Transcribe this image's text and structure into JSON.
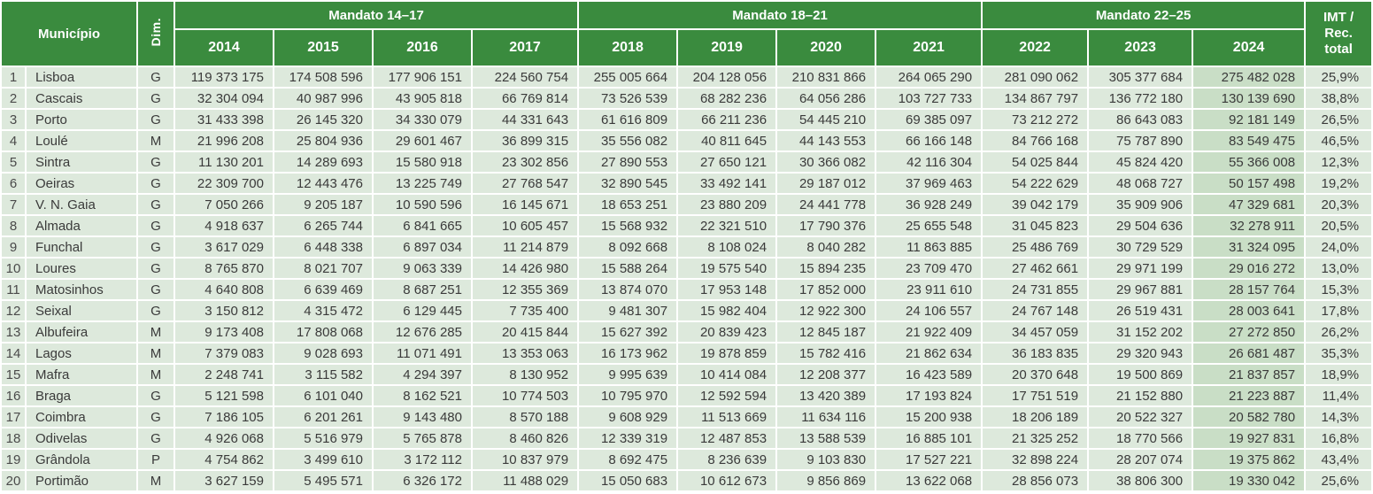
{
  "colors": {
    "header_green": "#3a8b3e",
    "row_background": "#dde9dc",
    "column_2024_highlight": "#c9dec6",
    "header_text": "#ffffff",
    "body_text": "#3a3a3a"
  },
  "chart_data": {
    "type": "table",
    "header": {
      "municipio": "Município",
      "dim": "Dim.",
      "imt_lines": [
        "IMT /",
        "Rec.",
        "total"
      ]
    },
    "groups": [
      {
        "label": "Mandato 14–17",
        "years": [
          "2014",
          "2015",
          "2016",
          "2017"
        ]
      },
      {
        "label": "Mandato 18–21",
        "years": [
          "2018",
          "2019",
          "2020",
          "2021"
        ]
      },
      {
        "label": "Mandato 22–25",
        "years": [
          "2022",
          "2023",
          "2024"
        ]
      }
    ],
    "highlighted_year": "2024",
    "rows": [
      {
        "rank": "1",
        "municipio": "Lisboa",
        "dim": "G",
        "values": [
          "119 373 175",
          "174 508 596",
          "177 906 151",
          "224 560 754",
          "255 005 664",
          "204 128 056",
          "210 831 866",
          "264 065 290",
          "281 090 062",
          "305 377 684",
          "275 482 028"
        ],
        "imt": "25,9%"
      },
      {
        "rank": "2",
        "municipio": "Cascais",
        "dim": "G",
        "values": [
          "32 304 094",
          "40 987 996",
          "43 905 818",
          "66 769 814",
          "73 526 539",
          "68 282 236",
          "64 056 286",
          "103 727 733",
          "134 867 797",
          "136 772 180",
          "130 139 690"
        ],
        "imt": "38,8%"
      },
      {
        "rank": "3",
        "municipio": "Porto",
        "dim": "G",
        "values": [
          "31 433 398",
          "26 145 320",
          "34 330 079",
          "44 331 643",
          "61 616 809",
          "66 211 236",
          "54 445 210",
          "69 385 097",
          "73 212 272",
          "86 643 083",
          "92 181 149"
        ],
        "imt": "26,5%"
      },
      {
        "rank": "4",
        "municipio": "Loulé",
        "dim": "M",
        "values": [
          "21 996 208",
          "25 804 936",
          "29 601 467",
          "36 899 315",
          "35 556 082",
          "40 811 645",
          "44 143 553",
          "66 166 148",
          "84 766 168",
          "75 787 890",
          "83 549 475"
        ],
        "imt": "46,5%"
      },
      {
        "rank": "5",
        "municipio": "Sintra",
        "dim": "G",
        "values": [
          "11 130 201",
          "14 289 693",
          "15 580 918",
          "23 302 856",
          "27 890 553",
          "27 650 121",
          "30 366 082",
          "42 116 304",
          "54 025 844",
          "45 824 420",
          "55 366 008"
        ],
        "imt": "12,3%"
      },
      {
        "rank": "6",
        "municipio": "Oeiras",
        "dim": "G",
        "values": [
          "22 309 700",
          "12 443 476",
          "13 225 749",
          "27 768 547",
          "32 890 545",
          "33 492 141",
          "29 187 012",
          "37 969 463",
          "54 222 629",
          "48 068 727",
          "50 157 498"
        ],
        "imt": "19,2%"
      },
      {
        "rank": "7",
        "municipio": "V. N. Gaia",
        "dim": "G",
        "values": [
          "7 050 266",
          "9 205 187",
          "10 590 596",
          "16 145 671",
          "18 653 251",
          "23 880 209",
          "24 441 778",
          "36 928 249",
          "39 042 179",
          "35 909 906",
          "47 329 681"
        ],
        "imt": "20,3%"
      },
      {
        "rank": "8",
        "municipio": "Almada",
        "dim": "G",
        "values": [
          "4 918 637",
          "6 265 744",
          "6 841 665",
          "10 605 457",
          "15 568 932",
          "22 321 510",
          "17 790 376",
          "25 655 548",
          "31 045 823",
          "29 504 636",
          "32 278 911"
        ],
        "imt": "20,5%"
      },
      {
        "rank": "9",
        "municipio": "Funchal",
        "dim": "G",
        "values": [
          "3 617 029",
          "6 448 338",
          "6 897 034",
          "11 214 879",
          "8 092 668",
          "8 108 024",
          "8 040 282",
          "11 863 885",
          "25 486 769",
          "30 729 529",
          "31 324 095"
        ],
        "imt": "24,0%"
      },
      {
        "rank": "10",
        "municipio": "Loures",
        "dim": "G",
        "values": [
          "8 765 870",
          "8 021 707",
          "9 063 339",
          "14 426 980",
          "15 588 264",
          "19 575 540",
          "15 894 235",
          "23 709 470",
          "27 462 661",
          "29 971 199",
          "29 016 272"
        ],
        "imt": "13,0%"
      },
      {
        "rank": "11",
        "municipio": "Matosinhos",
        "dim": "G",
        "values": [
          "4 640 808",
          "6 639 469",
          "8 687 251",
          "12 355 369",
          "13 874 070",
          "17 953 148",
          "17 852 000",
          "23 911 610",
          "24 731 855",
          "29 967 881",
          "28 157 764"
        ],
        "imt": "15,3%"
      },
      {
        "rank": "12",
        "municipio": "Seixal",
        "dim": "G",
        "values": [
          "3 150 812",
          "4 315 472",
          "6 129 445",
          "7 735 400",
          "9 481 307",
          "15 982 404",
          "12 922 300",
          "24 106 557",
          "24 767 148",
          "26 519 431",
          "28 003 641"
        ],
        "imt": "17,8%"
      },
      {
        "rank": "13",
        "municipio": "Albufeira",
        "dim": "M",
        "values": [
          "9 173 408",
          "17 808 068",
          "12 676 285",
          "20 415 844",
          "15 627 392",
          "20 839 423",
          "12 845 187",
          "21 922 409",
          "34 457 059",
          "31 152 202",
          "27 272 850"
        ],
        "imt": "26,2%"
      },
      {
        "rank": "14",
        "municipio": "Lagos",
        "dim": "M",
        "values": [
          "7 379 083",
          "9 028 693",
          "11 071 491",
          "13 353 063",
          "16 173 962",
          "19 878 859",
          "15 782 416",
          "21 862 634",
          "36 183 835",
          "29 320 943",
          "26 681 487"
        ],
        "imt": "35,3%"
      },
      {
        "rank": "15",
        "municipio": "Mafra",
        "dim": "M",
        "values": [
          "2 248 741",
          "3 115 582",
          "4 294 397",
          "8 130 952",
          "9 995 639",
          "10 414 084",
          "12 208 377",
          "16 423 589",
          "20 370 648",
          "19 500 869",
          "21 837 857"
        ],
        "imt": "18,9%"
      },
      {
        "rank": "16",
        "municipio": "Braga",
        "dim": "G",
        "values": [
          "5 121 598",
          "6 101 040",
          "8 162 521",
          "10 774 503",
          "10 795 970",
          "12 592 594",
          "13 420 389",
          "17 193 824",
          "17 751 519",
          "21 152 880",
          "21 223 887"
        ],
        "imt": "11,4%"
      },
      {
        "rank": "17",
        "municipio": "Coimbra",
        "dim": "G",
        "values": [
          "7 186 105",
          "6 201 261",
          "9 143 480",
          "8 570 188",
          "9 608 929",
          "11 513 669",
          "11 634 116",
          "15 200 938",
          "18 206 189",
          "20 522 327",
          "20 582 780"
        ],
        "imt": "14,3%"
      },
      {
        "rank": "18",
        "municipio": "Odivelas",
        "dim": "G",
        "values": [
          "4 926 068",
          "5 516 979",
          "5 765 878",
          "8 460 826",
          "12 339 319",
          "12 487 853",
          "13 588 539",
          "16 885 101",
          "21 325 252",
          "18 770 566",
          "19 927 831"
        ],
        "imt": "16,8%"
      },
      {
        "rank": "19",
        "municipio": "Grândola",
        "dim": "P",
        "values": [
          "4 754 862",
          "3 499 610",
          "3 172 112",
          "10 837 979",
          "8 692 475",
          "8 236 639",
          "9 103 830",
          "17 527 221",
          "32 898 224",
          "28 207 074",
          "19 375 862"
        ],
        "imt": "43,4%"
      },
      {
        "rank": "20",
        "municipio": "Portimão",
        "dim": "M",
        "values": [
          "3 627 159",
          "5 495 571",
          "6 326 172",
          "11 488 029",
          "15 050 683",
          "10 612 673",
          "9 856 869",
          "13 622 068",
          "28 856 073",
          "38 806 300",
          "19 330 042"
        ],
        "imt": "25,6%"
      }
    ]
  }
}
